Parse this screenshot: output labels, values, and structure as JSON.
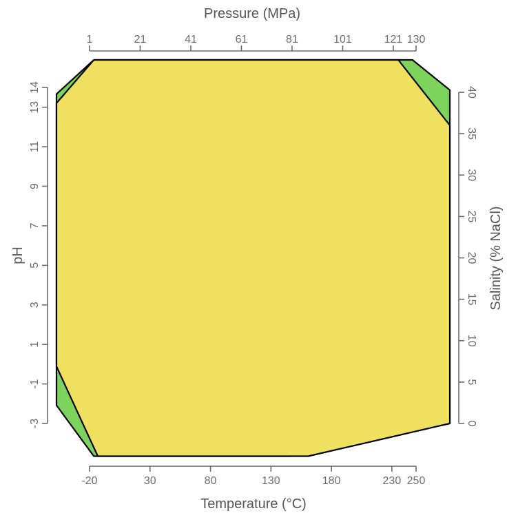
{
  "chart_data": {
    "type": "area",
    "title": "",
    "axes": {
      "top": {
        "label": "Pressure (MPa)",
        "ticks": [
          "1",
          "21",
          "41",
          "61",
          "81",
          "101",
          "121",
          "130"
        ],
        "range": [
          1,
          130
        ]
      },
      "bottom": {
        "label": "Temperature (°C)",
        "ticks": [
          "-20",
          "30",
          "80",
          "130",
          "180",
          "230",
          "250"
        ],
        "range": [
          -20,
          250
        ]
      },
      "left": {
        "label": "pH",
        "ticks": [
          "-3",
          "-1",
          "1",
          "3",
          "5",
          "7",
          "9",
          "11",
          "13",
          "14"
        ],
        "range": [
          -3,
          14
        ]
      },
      "right": {
        "label": "Salinity (% NaCl)",
        "ticks": [
          "0",
          "5",
          "10",
          "15",
          "20",
          "25",
          "30",
          "35",
          "40"
        ],
        "range": [
          0,
          40
        ]
      }
    },
    "series": [
      {
        "role": "outer-envelope",
        "color": "#7ed35d",
        "polygon": [
          [
            0.095,
            1.0
          ],
          [
            0.905,
            1.0
          ],
          [
            1.0,
            0.917
          ],
          [
            1.0,
            0.0
          ],
          [
            0.595,
            -0.09
          ],
          [
            0.095,
            -0.09
          ],
          [
            0.0,
            0.05
          ],
          [
            0.0,
            0.906
          ]
        ]
      },
      {
        "role": "inner-region",
        "color": "#f0e05f",
        "polygon": [
          [
            0.095,
            1.0
          ],
          [
            0.869,
            1.0
          ],
          [
            1.0,
            0.82
          ],
          [
            1.0,
            0.0
          ],
          [
            0.64,
            -0.09
          ],
          [
            0.105,
            -0.09
          ],
          [
            0.0,
            0.157
          ],
          [
            0.0,
            0.881
          ]
        ]
      }
    ]
  }
}
